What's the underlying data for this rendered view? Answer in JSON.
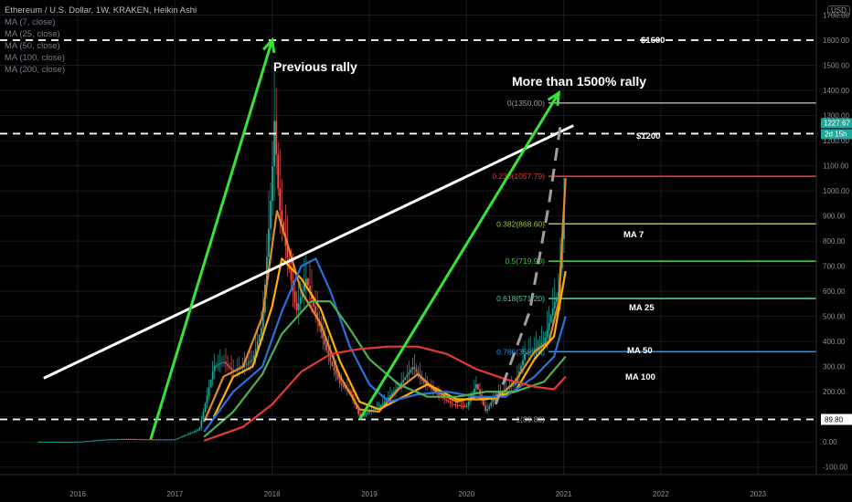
{
  "header": {
    "symbol_line": "Ethereum / U.S. Dollar, 1W, KRAKEN, Heikin Ashi",
    "indicators": [
      "MA (7, close)",
      "MA (25, close)",
      "MA (50, close)",
      "MA (100, close)",
      "MA (200, close)"
    ]
  },
  "currency_badge": "USD",
  "price_axis": {
    "ticks": [
      "1700.00",
      "1600.00",
      "1500.00",
      "1400.00",
      "1300.00",
      "1200.00",
      "1100.00",
      "1000.00",
      "900.00",
      "800.00",
      "700.00",
      "600.00",
      "500.00",
      "400.00",
      "300.00",
      "200.00",
      "100.00",
      "0.00",
      "-100.00"
    ],
    "current_price": "1227.67",
    "countdown": "2d 15h",
    "support_label": "89.80",
    "colors": {
      "current": "#26a69a",
      "support": "#ffffff"
    }
  },
  "time_axis": {
    "ticks": [
      "2016",
      "2017",
      "2018",
      "2019",
      "2020",
      "2021",
      "2022",
      "2023"
    ]
  },
  "annotations": {
    "previous_rally": "Previous rally",
    "current_rally": "More than 1500% rally",
    "level_1600": "$1600",
    "level_1200": "$1200",
    "ma7": "MA 7",
    "ma25": "MA 25",
    "ma50": "MA 50",
    "ma100": "MA 100"
  },
  "chart_data": {
    "type": "line",
    "title": "Ethereum / U.S. Dollar, 1W, KRAKEN, Heikin Ashi",
    "ylim": [
      -130,
      1760
    ],
    "xlim": [
      2015.2,
      2023.6
    ],
    "price_series": [
      [
        2015.6,
        1
      ],
      [
        2016.0,
        1
      ],
      [
        2016.3,
        10
      ],
      [
        2016.5,
        12
      ],
      [
        2016.8,
        10
      ],
      [
        2017.0,
        10
      ],
      [
        2017.25,
        50
      ],
      [
        2017.4,
        300
      ],
      [
        2017.5,
        320
      ],
      [
        2017.6,
        280
      ],
      [
        2017.7,
        300
      ],
      [
        2017.8,
        330
      ],
      [
        2017.9,
        470
      ],
      [
        2018.0,
        1050
      ],
      [
        2018.02,
        1300
      ],
      [
        2018.07,
        950
      ],
      [
        2018.15,
        750
      ],
      [
        2018.25,
        520
      ],
      [
        2018.35,
        650
      ],
      [
        2018.42,
        550
      ],
      [
        2018.5,
        440
      ],
      [
        2018.6,
        320
      ],
      [
        2018.7,
        230
      ],
      [
        2018.8,
        200
      ],
      [
        2018.9,
        100
      ],
      [
        2018.95,
        110
      ],
      [
        2019.1,
        140
      ],
      [
        2019.3,
        220
      ],
      [
        2019.45,
        300
      ],
      [
        2019.55,
        240
      ],
      [
        2019.7,
        190
      ],
      [
        2019.85,
        150
      ],
      [
        2020.0,
        140
      ],
      [
        2020.1,
        230
      ],
      [
        2020.2,
        120
      ],
      [
        2020.3,
        190
      ],
      [
        2020.5,
        230
      ],
      [
        2020.6,
        350
      ],
      [
        2020.7,
        370
      ],
      [
        2020.8,
        400
      ],
      [
        2020.9,
        550
      ],
      [
        2020.95,
        600
      ],
      [
        2021.0,
        900
      ],
      [
        2021.02,
        1228
      ]
    ],
    "moving_averages": [
      {
        "name": "MA 7",
        "color": "#e08a2a",
        "points": [
          [
            2017.3,
            80
          ],
          [
            2017.5,
            260
          ],
          [
            2017.7,
            300
          ],
          [
            2017.9,
            500
          ],
          [
            2018.05,
            920
          ],
          [
            2018.15,
            800
          ],
          [
            2018.3,
            600
          ],
          [
            2018.5,
            470
          ],
          [
            2018.7,
            260
          ],
          [
            2018.9,
            130
          ],
          [
            2019.1,
            120
          ],
          [
            2019.3,
            210
          ],
          [
            2019.5,
            270
          ],
          [
            2019.7,
            200
          ],
          [
            2019.9,
            160
          ],
          [
            2020.1,
            180
          ],
          [
            2020.3,
            170
          ],
          [
            2020.5,
            240
          ],
          [
            2020.7,
            360
          ],
          [
            2020.85,
            400
          ],
          [
            2020.95,
            560
          ],
          [
            2021.02,
            1050
          ]
        ]
      },
      {
        "name": "MA 25",
        "color": "#ffb100",
        "points": [
          [
            2017.4,
            100
          ],
          [
            2017.6,
            260
          ],
          [
            2017.8,
            300
          ],
          [
            2018.0,
            540
          ],
          [
            2018.1,
            730
          ],
          [
            2018.3,
            650
          ],
          [
            2018.5,
            530
          ],
          [
            2018.7,
            320
          ],
          [
            2018.9,
            160
          ],
          [
            2019.1,
            130
          ],
          [
            2019.4,
            190
          ],
          [
            2019.6,
            230
          ],
          [
            2019.9,
            170
          ],
          [
            2020.2,
            170
          ],
          [
            2020.5,
            200
          ],
          [
            2020.7,
            330
          ],
          [
            2020.9,
            420
          ],
          [
            2021.02,
            680
          ]
        ]
      },
      {
        "name": "MA 50",
        "color": "#2b6fdb",
        "points": [
          [
            2017.3,
            40
          ],
          [
            2017.6,
            200
          ],
          [
            2017.9,
            300
          ],
          [
            2018.1,
            520
          ],
          [
            2018.3,
            700
          ],
          [
            2018.45,
            730
          ],
          [
            2018.6,
            600
          ],
          [
            2018.8,
            380
          ],
          [
            2019.0,
            230
          ],
          [
            2019.2,
            160
          ],
          [
            2019.5,
            190
          ],
          [
            2019.8,
            200
          ],
          [
            2020.1,
            180
          ],
          [
            2020.4,
            180
          ],
          [
            2020.7,
            260
          ],
          [
            2020.9,
            340
          ],
          [
            2021.02,
            500
          ]
        ]
      },
      {
        "name": "MA 100",
        "color": "#4caf50",
        "points": [
          [
            2017.3,
            20
          ],
          [
            2017.6,
            120
          ],
          [
            2017.9,
            270
          ],
          [
            2018.1,
            430
          ],
          [
            2018.4,
            560
          ],
          [
            2018.6,
            560
          ],
          [
            2018.8,
            450
          ],
          [
            2019.0,
            330
          ],
          [
            2019.3,
            230
          ],
          [
            2019.6,
            180
          ],
          [
            2019.9,
            180
          ],
          [
            2020.2,
            200
          ],
          [
            2020.5,
            200
          ],
          [
            2020.8,
            240
          ],
          [
            2021.02,
            340
          ]
        ]
      },
      {
        "name": "MA 200",
        "color": "#e53935",
        "points": [
          [
            2017.3,
            5
          ],
          [
            2017.7,
            60
          ],
          [
            2018.0,
            150
          ],
          [
            2018.3,
            280
          ],
          [
            2018.6,
            350
          ],
          [
            2018.9,
            370
          ],
          [
            2019.2,
            380
          ],
          [
            2019.5,
            380
          ],
          [
            2019.8,
            350
          ],
          [
            2020.1,
            290
          ],
          [
            2020.4,
            250
          ],
          [
            2020.7,
            220
          ],
          [
            2020.9,
            210
          ],
          [
            2021.02,
            260
          ]
        ]
      }
    ],
    "fibonacci": [
      {
        "label": "0(1350.00)",
        "value": 1350,
        "color": "#9e9e9e"
      },
      {
        "label": "0.236(1057.79)",
        "value": 1057.79,
        "color": "#e53935"
      },
      {
        "label": "0.382(868.60)",
        "value": 868.6,
        "color": "#9ccc3c"
      },
      {
        "label": "0.5(719.90)",
        "value": 719.9,
        "color": "#43c34a"
      },
      {
        "label": "0.618(571.20)",
        "value": 571.2,
        "color": "#4cc9a0"
      },
      {
        "label": "0.786(359.48)",
        "value": 359.48,
        "color": "#2196f3"
      },
      {
        "label": "1(89.80)",
        "value": 89.8,
        "color": "#9e9e9e"
      }
    ],
    "dashed_levels": [
      1600,
      1227.67,
      89.8
    ],
    "trendline": [
      [
        2015.65,
        254
      ],
      [
        2021.1,
        1260
      ]
    ],
    "rally_arrows": [
      {
        "from": [
          2016.75,
          10
        ],
        "to": [
          2018.0,
          1600
        ]
      },
      {
        "from": [
          2018.9,
          89.8
        ],
        "to": [
          2020.95,
          1390
        ]
      }
    ],
    "projection_dashed": [
      [
        2020.3,
        150
      ],
      [
        2020.65,
        520
      ],
      [
        2020.85,
        950
      ],
      [
        2020.97,
        1270
      ]
    ]
  }
}
